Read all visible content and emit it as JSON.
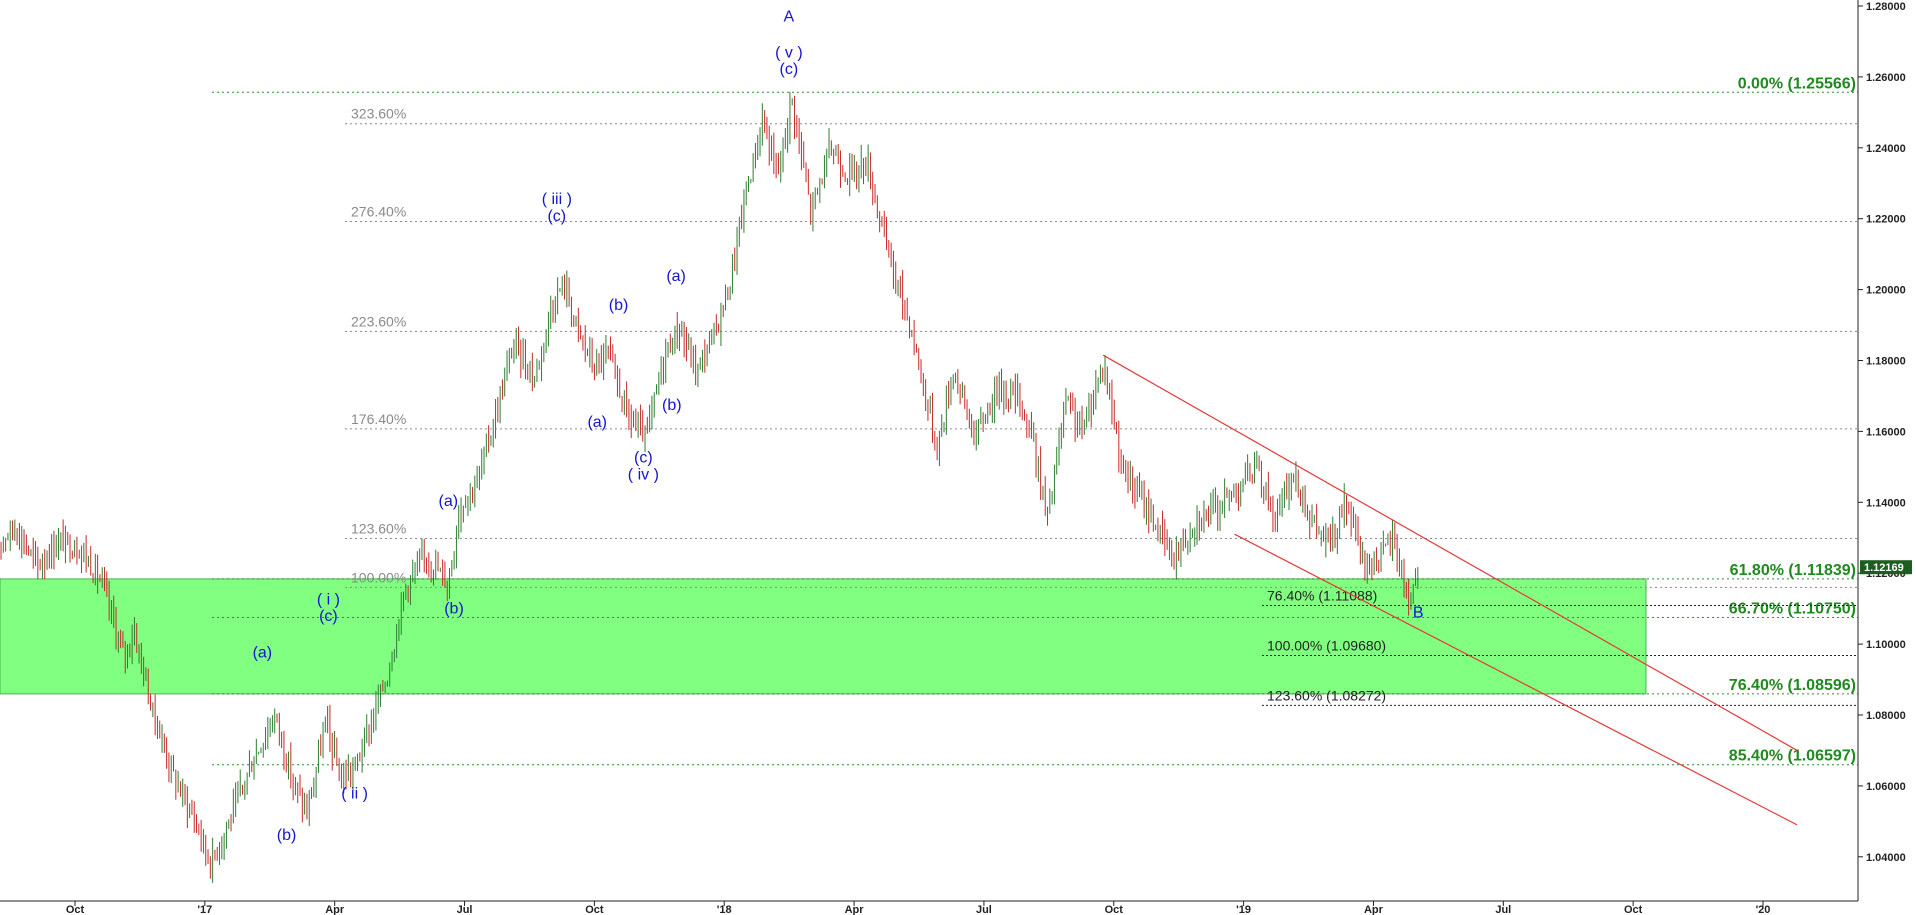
{
  "chart_data": {
    "type": "ohlc",
    "x_axis": {
      "ticks": [
        "Oct",
        "'17",
        "Apr",
        "Jul",
        "Oct",
        "'18",
        "Apr",
        "Jul",
        "Oct",
        "'19",
        "Apr",
        "Jul",
        "Oct",
        "'20"
      ],
      "range": [
        "2016-08",
        "2020-01"
      ]
    },
    "y_axis": {
      "side": "right",
      "ylim": [
        1.03,
        1.28
      ],
      "ticks": [
        "1.28000",
        "1.26000",
        "1.24000",
        "1.22000",
        "1.20000",
        "1.18000",
        "1.16000",
        "1.14000",
        "1.12000",
        "1.10000",
        "1.08000",
        "1.06000",
        "1.04000"
      ]
    },
    "current_price": "1.12169",
    "price_path": [
      [
        "2016-08-05",
        1.128
      ],
      [
        "2016-08-20",
        1.133
      ],
      [
        "2016-09-05",
        1.122
      ],
      [
        "2016-09-20",
        1.129
      ],
      [
        "2016-10-05",
        1.127
      ],
      [
        "2016-10-20",
        1.117
      ],
      [
        "2016-11-05",
        1.096
      ],
      [
        "2016-11-12",
        1.104
      ],
      [
        "2016-11-25",
        1.081
      ],
      [
        "2016-12-10",
        1.062
      ],
      [
        "2016-12-25",
        1.05
      ],
      [
        "2017-01-05",
        1.038
      ],
      [
        "2017-01-20",
        1.052
      ],
      [
        "2017-02-05",
        1.068
      ],
      [
        "2017-02-20",
        1.08
      ],
      [
        "2017-03-01",
        1.062
      ],
      [
        "2017-03-12",
        1.052
      ],
      [
        "2017-03-25",
        1.078
      ],
      [
        "2017-04-05",
        1.062
      ],
      [
        "2017-04-15",
        1.065
      ],
      [
        "2017-04-25",
        1.076
      ],
      [
        "2017-05-08",
        1.092
      ],
      [
        "2017-05-20",
        1.116
      ],
      [
        "2017-06-05",
        1.125
      ],
      [
        "2017-06-20",
        1.117
      ],
      [
        "2017-06-28",
        1.139
      ],
      [
        "2017-07-10",
        1.146
      ],
      [
        "2017-07-25",
        1.168
      ],
      [
        "2017-08-05",
        1.185
      ],
      [
        "2017-08-20",
        1.175
      ],
      [
        "2017-09-01",
        1.195
      ],
      [
        "2017-09-10",
        1.202
      ],
      [
        "2017-09-20",
        1.188
      ],
      [
        "2017-10-01",
        1.178
      ],
      [
        "2017-10-10",
        1.182
      ],
      [
        "2017-10-25",
        1.164
      ],
      [
        "2017-11-07",
        1.158
      ],
      [
        "2017-11-20",
        1.182
      ],
      [
        "2017-11-30",
        1.189
      ],
      [
        "2017-12-12",
        1.177
      ],
      [
        "2017-12-25",
        1.188
      ],
      [
        "2018-01-05",
        1.202
      ],
      [
        "2018-01-15",
        1.225
      ],
      [
        "2018-01-28",
        1.248
      ],
      [
        "2018-02-08",
        1.232
      ],
      [
        "2018-02-18",
        1.254
      ],
      [
        "2018-03-01",
        1.222
      ],
      [
        "2018-03-15",
        1.24
      ],
      [
        "2018-03-28",
        1.232
      ],
      [
        "2018-04-10",
        1.236
      ],
      [
        "2018-04-25",
        1.21
      ],
      [
        "2018-05-10",
        1.19
      ],
      [
        "2018-05-29",
        1.155
      ],
      [
        "2018-06-10",
        1.178
      ],
      [
        "2018-06-25",
        1.158
      ],
      [
        "2018-07-10",
        1.172
      ],
      [
        "2018-07-25",
        1.17
      ],
      [
        "2018-08-05",
        1.158
      ],
      [
        "2018-08-15",
        1.135
      ],
      [
        "2018-08-28",
        1.168
      ],
      [
        "2018-09-10",
        1.16
      ],
      [
        "2018-09-24",
        1.18
      ],
      [
        "2018-10-08",
        1.148
      ],
      [
        "2018-10-25",
        1.138
      ],
      [
        "2018-11-12",
        1.124
      ],
      [
        "2018-11-28",
        1.135
      ],
      [
        "2018-12-12",
        1.138
      ],
      [
        "2019-01-10",
        1.15
      ],
      [
        "2019-01-24",
        1.135
      ],
      [
        "2019-02-05",
        1.148
      ],
      [
        "2019-02-20",
        1.133
      ],
      [
        "2019-03-01",
        1.128
      ],
      [
        "2019-03-12",
        1.14
      ],
      [
        "2019-03-25",
        1.122
      ],
      [
        "2019-04-05",
        1.124
      ],
      [
        "2019-04-15",
        1.13
      ],
      [
        "2019-04-26",
        1.112
      ],
      [
        "2019-05-02",
        1.122
      ]
    ],
    "fib_levels_right": [
      {
        "label": "0.00% (1.25566)",
        "value": 1.25566
      },
      {
        "label": "61.80% (1.11839)",
        "value": 1.11839
      },
      {
        "label": "66.70% (1.10750)",
        "value": 1.1075
      },
      {
        "label": "76.40% (1.08596)",
        "value": 1.08596
      },
      {
        "label": "85.40% (1.06597)",
        "value": 1.06597
      }
    ],
    "fib_extensions": [
      {
        "label": "323.60%",
        "value": 1.2468
      },
      {
        "label": "276.40%",
        "value": 1.2192
      },
      {
        "label": "223.60%",
        "value": 1.1882
      },
      {
        "label": "176.40%",
        "value": 1.1607
      },
      {
        "label": "123.60%",
        "value": 1.1298
      },
      {
        "label": "100.00%",
        "value": 1.116
      }
    ],
    "fib_projections": [
      {
        "label": "76.40% (1.11088)",
        "value": 1.11088
      },
      {
        "label": "100.00% (1.09680)",
        "value": 1.0968
      },
      {
        "label": "123.60% (1.08272)",
        "value": 1.08272
      }
    ],
    "support_zone": {
      "from_date": "2016-08-01",
      "to_date": "2019-10-10",
      "low": 1.08596,
      "high": 1.11839,
      "color": "#80ff80"
    },
    "channel": [
      {
        "from": [
          "2018-09-24",
          1.1815
        ],
        "to": [
          "2020-01-25",
          1.07
        ]
      },
      {
        "from": [
          "2018-12-25",
          1.131
        ],
        "to": [
          "2020-01-25",
          1.049
        ]
      }
    ],
    "wave_labels": [
      {
        "text": "A",
        "date": "2018-02-16",
        "value": 1.2756
      },
      {
        "text": "( v )",
        "date": "2018-02-16",
        "value": 1.2655
      },
      {
        "text": "(c)",
        "date": "2018-02-16",
        "value": 1.2608
      },
      {
        "text": "( iii )",
        "date": "2017-09-05",
        "value": 1.2241
      },
      {
        "text": "(c)",
        "date": "2017-09-05",
        "value": 1.2194
      },
      {
        "text": "(a)",
        "date": "2017-11-28",
        "value": 1.2024
      },
      {
        "text": "(b)",
        "date": "2017-10-18",
        "value": 1.1942
      },
      {
        "text": "(a)",
        "date": "2017-10-03",
        "value": 1.1612
      },
      {
        "text": "(b)",
        "date": "2017-11-25",
        "value": 1.166
      },
      {
        "text": "(c)",
        "date": "2017-11-05",
        "value": 1.1512
      },
      {
        "text": "( iv )",
        "date": "2017-11-05",
        "value": 1.1465
      },
      {
        "text": "(a)",
        "date": "2017-06-20",
        "value": 1.139
      },
      {
        "text": "(b)",
        "date": "2017-06-24",
        "value": 1.1087
      },
      {
        "text": "( i )",
        "date": "2017-03-27",
        "value": 1.1112
      },
      {
        "text": "(c)",
        "date": "2017-03-27",
        "value": 1.1065
      },
      {
        "text": "(a)",
        "date": "2017-02-11",
        "value": 1.0962
      },
      {
        "text": "( ii )",
        "date": "2017-04-15",
        "value": 1.0565
      },
      {
        "text": "(b)",
        "date": "2017-02-28",
        "value": 1.0448
      },
      {
        "text": "B",
        "date": "2019-05-02",
        "value": 1.1075
      }
    ]
  }
}
